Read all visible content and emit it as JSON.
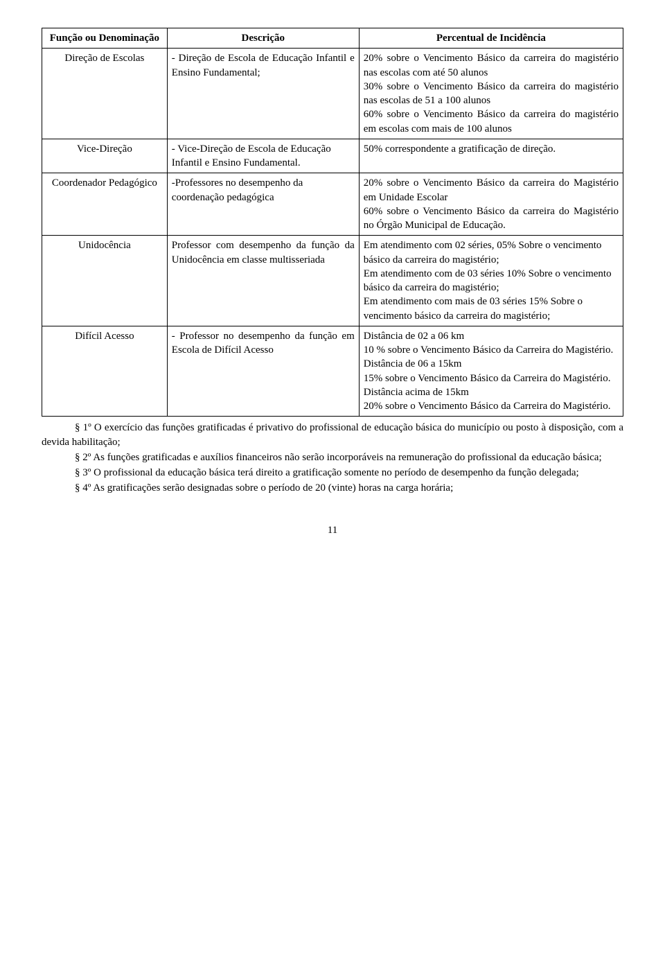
{
  "headers": {
    "col1": "Função ou Denominação",
    "col2": "Descrição",
    "col3": "Percentual de Incidência"
  },
  "rows": [
    {
      "c1": "Direção de Escolas",
      "c2": "- Direção de Escola de Educação Infantil e Ensino Fundamental;",
      "c3": "20% sobre o Vencimento Básico da carreira do magistério nas escolas  com até 50 alunos\n30% sobre o Vencimento Básico da carreira do magistério  nas escolas  de 51 a 100 alunos\n60% sobre o Vencimento Básico da carreira do magistério    em escolas com mais de  100 alunos"
    },
    {
      "c1": "Vice-Direção",
      "c2": "- Vice-Direção de Escola de Educação Infantil e Ensino Fundamental.",
      "c3": "50% correspondente a gratificação de direção."
    },
    {
      "c1": "Coordenador Pedagógico",
      "c2": "-Professores no desempenho da coordenação pedagógica",
      "c3": "20% sobre o Vencimento Básico da carreira do Magistério  em  Unidade Escolar\n60% sobre o Vencimento Básico da carreira do  Magistério no Órgão Municipal de Educação."
    },
    {
      "c1": "Unidocência",
      "c2": "Professor com desempenho da função da Unidocência em classe multisseriada",
      "c3": "Em atendimento com  02 séries, 05% Sobre o vencimento básico da carreira do magistério;\nEm atendimento com de 03 séries 10% Sobre o vencimento básico da carreira do magistério;\nEm atendimento com mais de 03 séries 15% Sobre o vencimento básico da carreira do magistério;"
    },
    {
      "c1": "Difícil Acesso",
      "c2": "- Professor no desempenho da função em Escola de Difícil Acesso",
      "c3": "Distância de 02 a 06 km\n10 % sobre o Vencimento Básico da Carreira do Magistério.\nDistância  de 06  a 15km\n15% sobre o Vencimento Básico da Carreira do Magistério.\nDistância acima de 15km\n20% sobre o Vencimento Básico da Carreira do Magistério."
    }
  ],
  "paragraphs": {
    "p1": "§ 1º O exercício das funções gratificadas é privativo do profissional de educação básica do município ou posto à disposição, com a devida habilitação;",
    "p2": "§ 2º As funções gratificadas e auxílios financeiros não serão incorporáveis na remuneração do profissional da educação básica;",
    "p3": "§ 3º O profissional da educação básica terá direito a gratificação somente no período de desempenho da função delegada;",
    "p4": "§ 4º As gratificações serão designadas sobre o período de 20 (vinte) horas na carga horária;"
  },
  "page_number": "11"
}
